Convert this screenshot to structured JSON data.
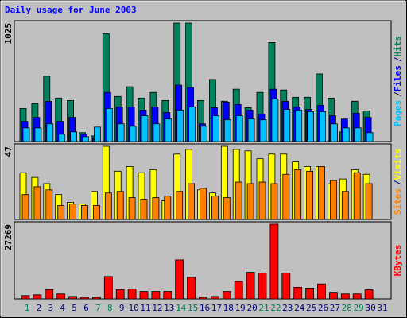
{
  "chart_data": [
    {
      "type": "bar",
      "title": "Daily usage for June 2003",
      "ylim": [
        0,
        1025
      ],
      "yticks": [
        1025
      ],
      "legend_separator": "/",
      "series": [
        {
          "name": "Hits",
          "color": "#00805c",
          "values": [
            286,
            328,
            565,
            376,
            355,
            77,
            49,
            934,
            390,
            474,
            376,
            425,
            355,
            1025,
            1025,
            355,
            537,
            349,
            453,
            293,
            425,
            857,
            446,
            383,
            383,
            585,
            376,
            84,
            349,
            265,
            null
          ]
        },
        {
          "name": "Files",
          "color": "#0000ff",
          "values": [
            174,
            209,
            348,
            174,
            209,
            63,
            35,
            425,
            300,
            300,
            272,
            300,
            251,
            488,
            467,
            153,
            293,
            341,
            321,
            272,
            237,
            453,
            348,
            300,
            279,
            314,
            223,
            195,
            244,
            209,
            null
          ]
        },
        {
          "name": "Pages",
          "color": "#00c0ff",
          "values": [
            118,
            118,
            153,
            63,
            84,
            42,
            125,
            286,
            153,
            132,
            223,
            153,
            195,
            272,
            300,
            132,
            223,
            188,
            223,
            195,
            188,
            369,
            279,
            272,
            258,
            258,
            153,
            118,
            118,
            77,
            null
          ]
        }
      ]
    },
    {
      "type": "bar",
      "ylim": [
        0,
        47
      ],
      "yticks": [
        47
      ],
      "legend_separator": "/",
      "series": [
        {
          "name": "Visits",
          "color": "#ffff00",
          "values": [
            30,
            27,
            23,
            16,
            11,
            10,
            18,
            47,
            31,
            34,
            30,
            32,
            12,
            42,
            45,
            19,
            17,
            47,
            45,
            44,
            39,
            42,
            42,
            37,
            34,
            34,
            23,
            26,
            32,
            29,
            null
          ]
        },
        {
          "name": "Sites",
          "color": "#ff8000",
          "values": [
            16,
            21,
            19,
            9,
            10,
            9,
            9,
            17,
            18,
            14,
            13,
            14,
            15,
            18,
            23,
            20,
            15,
            14,
            24,
            23,
            24,
            23,
            29,
            32,
            31,
            34,
            25,
            18,
            30,
            23,
            null
          ]
        }
      ]
    },
    {
      "type": "bar",
      "ylim": [
        0,
        27269
      ],
      "yticks": [
        27269
      ],
      "categories": [
        "1",
        "2",
        "3",
        "4",
        "5",
        "6",
        "7",
        "8",
        "9",
        "10",
        "11",
        "12",
        "13",
        "14",
        "15",
        "16",
        "17",
        "18",
        "19",
        "20",
        "21",
        "22",
        "23",
        "24",
        "25",
        "26",
        "27",
        "28",
        "29",
        "30",
        "31"
      ],
      "highlight": [
        0,
        6,
        7,
        13,
        14,
        20,
        21,
        27,
        28
      ],
      "highlight_color": "#00805c",
      "label_color": "#000080",
      "series": [
        {
          "name": "KBytes",
          "color": "#ff0000",
          "values": [
            1212,
            1515,
            3333,
            1818,
            909,
            606,
            606,
            8181,
            3333,
            3636,
            2727,
            2727,
            2727,
            14241,
            7878,
            606,
            909,
            2727,
            6363,
            9696,
            9393,
            27269,
            9393,
            4242,
            3939,
            5454,
            2424,
            1818,
            1818,
            3333,
            null
          ]
        }
      ]
    }
  ]
}
